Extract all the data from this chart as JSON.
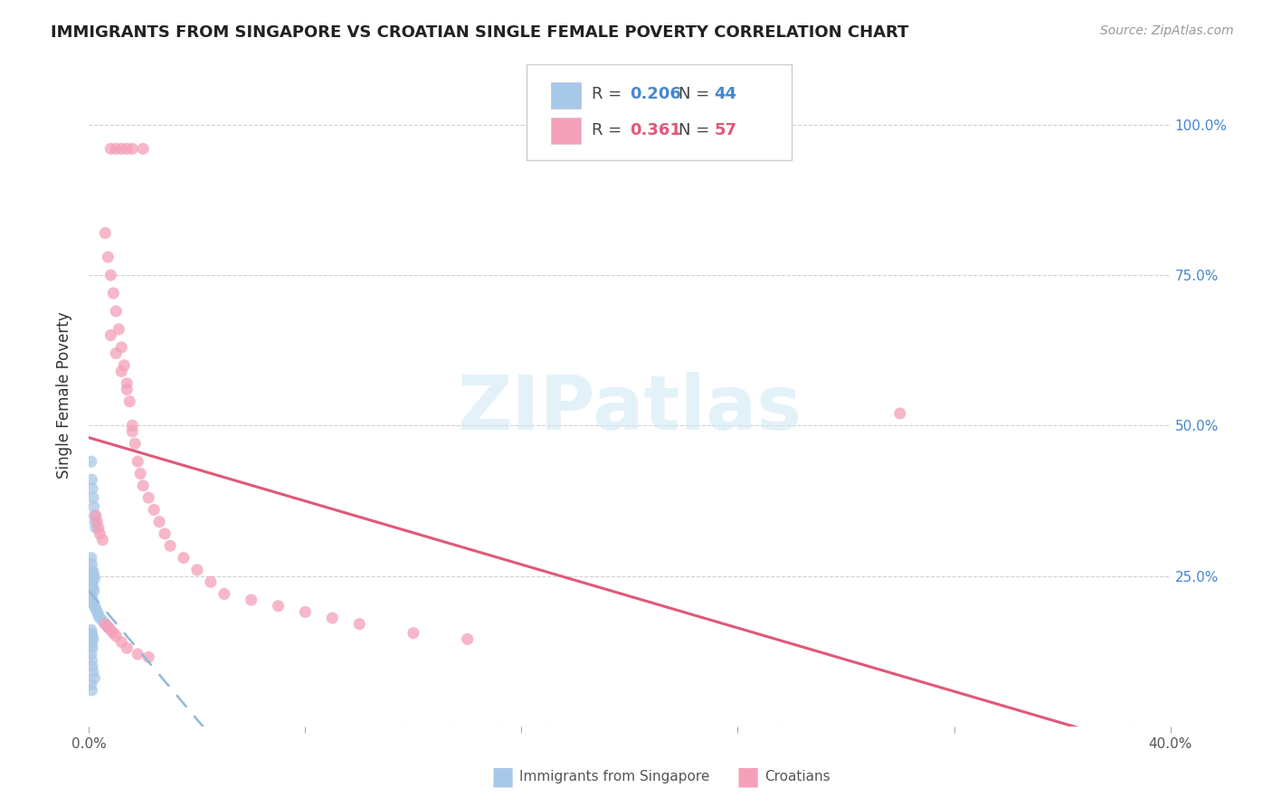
{
  "title": "IMMIGRANTS FROM SINGAPORE VS CROATIAN SINGLE FEMALE POVERTY CORRELATION CHART",
  "source": "Source: ZipAtlas.com",
  "ylabel": "Single Female Poverty",
  "xlim": [
    0.0,
    0.4
  ],
  "ylim": [
    0.0,
    1.1
  ],
  "legend_R1": "0.206",
  "legend_N1": "44",
  "legend_R2": "0.361",
  "legend_N2": "57",
  "watermark": "ZIPatlas",
  "blue_color": "#a8c8e8",
  "pink_color": "#f4a0b8",
  "blue_line_color": "#90b8d8",
  "pink_line_color": "#e05878",
  "background_color": "#ffffff",
  "grid_color": "#cccccc",
  "singapore_x": [
    0.0008,
    0.001,
    0.0012,
    0.0015,
    0.0018,
    0.002,
    0.0022,
    0.0025,
    0.0008,
    0.001,
    0.0012,
    0.0015,
    0.0018,
    0.002,
    0.001,
    0.0012,
    0.0015,
    0.0018,
    0.0008,
    0.001,
    0.0012,
    0.0015,
    0.002,
    0.0025,
    0.003,
    0.0035,
    0.004,
    0.005,
    0.006,
    0.007,
    0.0008,
    0.001,
    0.0012,
    0.0015,
    0.0008,
    0.001,
    0.0012,
    0.0008,
    0.001,
    0.0012,
    0.0015,
    0.002,
    0.0008,
    0.001
  ],
  "singapore_y": [
    0.44,
    0.41,
    0.395,
    0.38,
    0.365,
    0.35,
    0.34,
    0.33,
    0.28,
    0.27,
    0.26,
    0.255,
    0.25,
    0.245,
    0.24,
    0.235,
    0.23,
    0.225,
    0.22,
    0.215,
    0.21,
    0.205,
    0.2,
    0.195,
    0.19,
    0.185,
    0.18,
    0.175,
    0.17,
    0.165,
    0.16,
    0.155,
    0.15,
    0.145,
    0.14,
    0.135,
    0.13,
    0.12,
    0.11,
    0.1,
    0.09,
    0.08,
    0.07,
    0.06
  ],
  "croatian_x": [
    0.008,
    0.01,
    0.012,
    0.014,
    0.016,
    0.02,
    0.006,
    0.007,
    0.008,
    0.009,
    0.01,
    0.011,
    0.012,
    0.013,
    0.014,
    0.015,
    0.016,
    0.017,
    0.018,
    0.019,
    0.02,
    0.022,
    0.024,
    0.026,
    0.028,
    0.03,
    0.035,
    0.04,
    0.045,
    0.05,
    0.06,
    0.07,
    0.08,
    0.09,
    0.1,
    0.12,
    0.14,
    0.3,
    0.008,
    0.01,
    0.012,
    0.014,
    0.016,
    0.0025,
    0.003,
    0.0035,
    0.004,
    0.005,
    0.006,
    0.007,
    0.008,
    0.009,
    0.01,
    0.012,
    0.014,
    0.018,
    0.022
  ],
  "croatian_y": [
    0.96,
    0.96,
    0.96,
    0.96,
    0.96,
    0.96,
    0.82,
    0.78,
    0.75,
    0.72,
    0.69,
    0.66,
    0.63,
    0.6,
    0.57,
    0.54,
    0.5,
    0.47,
    0.44,
    0.42,
    0.4,
    0.38,
    0.36,
    0.34,
    0.32,
    0.3,
    0.28,
    0.26,
    0.24,
    0.22,
    0.21,
    0.2,
    0.19,
    0.18,
    0.17,
    0.155,
    0.145,
    0.52,
    0.65,
    0.62,
    0.59,
    0.56,
    0.49,
    0.35,
    0.34,
    0.33,
    0.32,
    0.31,
    0.17,
    0.165,
    0.16,
    0.155,
    0.15,
    0.14,
    0.13,
    0.12,
    0.115
  ]
}
